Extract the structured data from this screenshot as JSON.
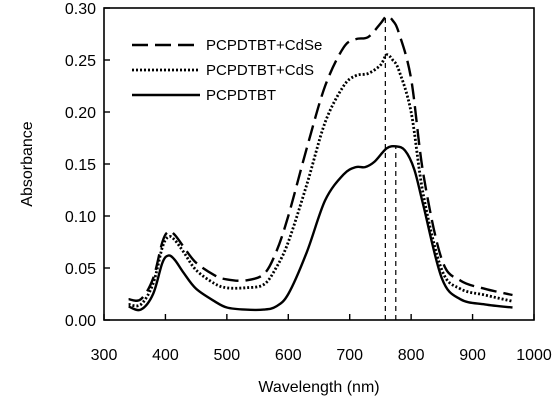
{
  "chart_data": {
    "type": "line",
    "xlabel": "Wavelength (nm)",
    "ylabel": "Absorbance",
    "xlim": [
      300,
      1000
    ],
    "ylim": [
      0.0,
      0.3
    ],
    "xticks": [
      "300",
      "400",
      "500",
      "600",
      "700",
      "800",
      "900",
      "1000"
    ],
    "yticks": [
      "0.00",
      "0.05",
      "0.10",
      "0.15",
      "0.20",
      "0.25",
      "0.30"
    ],
    "grid": false,
    "legend_position": "top-left",
    "series": [
      {
        "name": "PCPDTBT+CdSe",
        "style": "long-dash",
        "x": [
          340,
          360,
          380,
          395,
          405,
          415,
          430,
          450,
          480,
          500,
          530,
          560,
          580,
          600,
          630,
          660,
          690,
          710,
          730,
          750,
          760,
          770,
          780,
          800,
          820,
          850,
          880,
          920,
          965
        ],
        "y": [
          0.02,
          0.02,
          0.04,
          0.075,
          0.085,
          0.082,
          0.07,
          0.055,
          0.043,
          0.039,
          0.038,
          0.044,
          0.065,
          0.1,
          0.165,
          0.225,
          0.262,
          0.27,
          0.272,
          0.285,
          0.292,
          0.288,
          0.276,
          0.232,
          0.14,
          0.058,
          0.038,
          0.03,
          0.024
        ]
      },
      {
        "name": "PCPDTBT+CdS",
        "style": "dotted",
        "x": [
          340,
          360,
          380,
          395,
          405,
          415,
          430,
          450,
          480,
          500,
          530,
          560,
          580,
          600,
          630,
          660,
          690,
          710,
          730,
          750,
          760,
          770,
          780,
          800,
          820,
          850,
          880,
          920,
          965
        ],
        "y": [
          0.015,
          0.015,
          0.035,
          0.07,
          0.08,
          0.077,
          0.065,
          0.048,
          0.035,
          0.031,
          0.031,
          0.034,
          0.05,
          0.075,
          0.13,
          0.19,
          0.225,
          0.235,
          0.237,
          0.245,
          0.255,
          0.25,
          0.24,
          0.2,
          0.12,
          0.048,
          0.03,
          0.024,
          0.018
        ]
      },
      {
        "name": "PCPDTBT",
        "style": "solid",
        "x": [
          340,
          360,
          380,
          395,
          405,
          415,
          430,
          450,
          480,
          500,
          530,
          560,
          580,
          600,
          630,
          660,
          690,
          710,
          725,
          740,
          760,
          775,
          790,
          805,
          820,
          850,
          880,
          920,
          965
        ],
        "y": [
          0.013,
          0.01,
          0.025,
          0.055,
          0.062,
          0.058,
          0.045,
          0.03,
          0.018,
          0.012,
          0.01,
          0.01,
          0.013,
          0.025,
          0.065,
          0.115,
          0.14,
          0.147,
          0.147,
          0.152,
          0.165,
          0.167,
          0.163,
          0.145,
          0.11,
          0.04,
          0.02,
          0.015,
          0.012
        ]
      }
    ],
    "annotations": [
      {
        "type": "vertical-dashed-line",
        "x": 758,
        "y_top": 0.292
      },
      {
        "type": "vertical-dashed-line",
        "x": 775,
        "y_top": 0.167
      }
    ]
  }
}
